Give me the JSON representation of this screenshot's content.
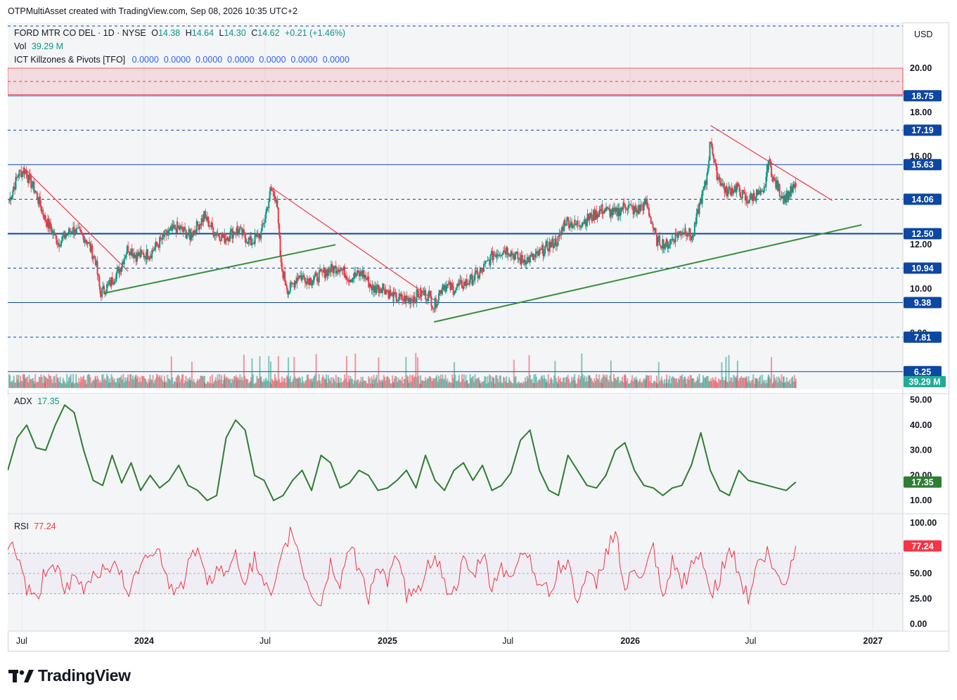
{
  "attribution": "OTPMultiAsset created with TradingView.com, Sep 08, 2026 10:35 UTC+2",
  "brand": "TradingView",
  "currency": "USD",
  "symbol_line": {
    "name": "FORD MTR CO DEL · 1D · NYSE",
    "o_label": "O",
    "o": "14.38",
    "h_label": "H",
    "h": "14.64",
    "l_label": "L",
    "l": "14.30",
    "c_label": "C",
    "c": "14.62",
    "change": "+0.21 (+1.46%)"
  },
  "volume_line": {
    "label": "Vol",
    "value": "39.29 M"
  },
  "indicator_line": {
    "label": "ICT Killzones & Pivots [TFO]",
    "values": "0.0000  0.0000  0.0000  0.0000  0.0000  0.0000  0.0000"
  },
  "adx_legend": {
    "label": "ADX",
    "value": "17.35"
  },
  "rsi_legend": {
    "label": "RSI",
    "value": "77.24"
  },
  "colors": {
    "up": "#089981",
    "down": "#f23645",
    "level_line": "#0d47a1",
    "trend_up": "#388e3c",
    "trend_down": "#f23645",
    "adx": "#2e7d32",
    "rsi": "#f23645"
  },
  "chart_data": [
    {
      "type": "candlestick",
      "series": [
        {
          "name": "FORD MTR CO DEL",
          "values": [
            [
              "2023-06-12",
              14.0
            ],
            [
              "2023-06-26",
              15.2
            ],
            [
              "2023-07-05",
              15.4
            ],
            [
              "2023-07-20",
              14.5
            ],
            [
              "2023-08-05",
              13.2
            ],
            [
              "2023-08-25",
              12.1
            ],
            [
              "2023-09-15",
              12.7
            ],
            [
              "2023-10-05",
              12.3
            ],
            [
              "2023-10-20",
              11.3
            ],
            [
              "2023-10-27",
              9.8
            ],
            [
              "2023-11-10",
              10.2
            ],
            [
              "2023-11-25",
              10.9
            ],
            [
              "2023-12-08",
              11.9
            ],
            [
              "2023-12-20",
              11.5
            ],
            [
              "2024-01-10",
              11.6
            ],
            [
              "2024-02-01",
              12.4
            ],
            [
              "2024-02-20",
              12.8
            ],
            [
              "2024-03-10",
              12.4
            ],
            [
              "2024-04-01",
              13.3
            ],
            [
              "2024-04-15",
              12.6
            ],
            [
              "2024-05-01",
              12.3
            ],
            [
              "2024-05-20",
              12.7
            ],
            [
              "2024-06-10",
              12.1
            ],
            [
              "2024-06-25",
              12.5
            ],
            [
              "2024-07-10",
              14.5
            ],
            [
              "2024-07-18",
              14.1
            ],
            [
              "2024-07-25",
              11.0
            ],
            [
              "2024-08-05",
              9.9
            ],
            [
              "2024-08-20",
              10.6
            ],
            [
              "2024-09-10",
              10.4
            ],
            [
              "2024-10-01",
              10.8
            ],
            [
              "2024-10-20",
              11.0
            ],
            [
              "2024-11-05",
              10.5
            ],
            [
              "2024-11-25",
              10.7
            ],
            [
              "2024-12-10",
              10.0
            ],
            [
              "2024-12-25",
              10.1
            ],
            [
              "2025-01-10",
              9.6
            ],
            [
              "2025-02-01",
              9.5
            ],
            [
              "2025-02-20",
              9.8
            ],
            [
              "2025-03-05",
              9.7
            ],
            [
              "2025-03-12",
              9.2
            ],
            [
              "2025-03-25",
              10.2
            ],
            [
              "2025-04-10",
              10.0
            ],
            [
              "2025-05-01",
              10.3
            ],
            [
              "2025-05-20",
              10.7
            ],
            [
              "2025-06-10",
              11.6
            ],
            [
              "2025-06-30",
              11.8
            ],
            [
              "2025-07-20",
              11.3
            ],
            [
              "2025-08-10",
              11.4
            ],
            [
              "2025-08-28",
              11.9
            ],
            [
              "2025-09-15",
              12.2
            ],
            [
              "2025-09-25",
              13.1
            ],
            [
              "2025-10-10",
              12.9
            ],
            [
              "2025-11-01",
              13.2
            ],
            [
              "2025-11-20",
              13.6
            ],
            [
              "2025-12-10",
              13.4
            ],
            [
              "2025-12-25",
              13.8
            ],
            [
              "2026-01-10",
              13.5
            ],
            [
              "2026-01-25",
              13.9
            ],
            [
              "2026-02-10",
              12.2
            ],
            [
              "2026-02-25",
              12.0
            ],
            [
              "2026-03-10",
              12.4
            ],
            [
              "2026-03-25",
              12.7
            ],
            [
              "2026-04-05",
              12.3
            ],
            [
              "2026-04-15",
              13.8
            ],
            [
              "2026-04-25",
              14.8
            ],
            [
              "2026-05-02",
              16.8
            ],
            [
              "2026-05-10",
              15.3
            ],
            [
              "2026-05-25",
              14.4
            ],
            [
              "2026-06-10",
              14.6
            ],
            [
              "2026-06-25",
              14.0
            ],
            [
              "2026-07-10",
              14.3
            ],
            [
              "2026-07-20",
              14.2
            ],
            [
              "2026-07-28",
              15.8
            ],
            [
              "2026-08-05",
              14.9
            ],
            [
              "2026-08-20",
              14.1
            ],
            [
              "2026-09-07",
              14.62
            ]
          ]
        }
      ],
      "y_ticks": [
        "20.00",
        "18.00",
        "16.00",
        "14.00",
        "12.00",
        "10.00",
        "8.00"
      ],
      "price_labels": [
        "18.75",
        "17.19",
        "15.63",
        "14.06",
        "12.50",
        "10.94",
        "9.38",
        "7.81",
        "6.25"
      ],
      "last_volume_label": "39.29 M",
      "x_ticks": [
        "Jul",
        "2024",
        "Jul",
        "2025",
        "Jul",
        "2026",
        "Jul",
        "2027"
      ],
      "horizontal_levels": [
        {
          "value": 18.75,
          "style": "solid"
        },
        {
          "value": 17.19,
          "style": "dashed"
        },
        {
          "value": 15.63,
          "style": "solid"
        },
        {
          "value": 14.06,
          "style": "dashed"
        },
        {
          "value": 12.5,
          "style": "solid-bold"
        },
        {
          "value": 10.94,
          "style": "dashed"
        },
        {
          "value": 9.38,
          "style": "solid"
        },
        {
          "value": 7.81,
          "style": "dashed"
        },
        {
          "value": 6.25,
          "style": "solid"
        }
      ],
      "red_zone": {
        "from": 18.8,
        "to": 20.0
      },
      "trendlines_down": [
        [
          [
            "2023-07-05",
            15.45
          ],
          [
            "2023-12-08",
            10.8
          ]
        ],
        [
          [
            "2024-07-10",
            14.6
          ],
          [
            "2025-03-12",
            9.5
          ]
        ],
        [
          [
            "2026-05-02",
            17.4
          ],
          [
            "2026-11-01",
            14.0
          ]
        ]
      ],
      "trendlines_up": [
        [
          [
            "2023-11-01",
            9.8
          ],
          [
            "2024-10-15",
            12.0
          ]
        ],
        [
          [
            "2025-03-12",
            8.5
          ],
          [
            "2026-12-15",
            12.9
          ]
        ]
      ],
      "grid": true
    },
    {
      "type": "line",
      "series": [
        {
          "name": "ADX",
          "values": [
            22,
            35,
            40,
            31,
            30,
            40,
            48,
            45,
            30,
            18,
            16,
            28,
            17,
            25,
            14,
            20,
            15,
            18,
            24,
            16,
            14,
            10,
            12,
            35,
            42,
            38,
            20,
            18,
            10,
            12,
            18,
            22,
            14,
            28,
            25,
            15,
            17,
            22,
            20,
            14,
            15,
            18,
            22,
            15,
            28,
            18,
            14,
            22,
            25,
            18,
            24,
            14,
            16,
            21,
            34,
            38,
            22,
            14,
            12,
            28,
            22,
            16,
            15,
            20,
            30,
            33,
            22,
            16,
            15,
            12,
            15,
            16,
            24,
            37,
            22,
            14,
            12,
            22,
            18,
            17,
            16,
            15,
            14,
            17.35
          ]
        }
      ],
      "y_ticks": [
        "50.00",
        "40.00",
        "30.00",
        "20.00",
        "10.00"
      ],
      "ylim": [
        5,
        52
      ],
      "last_label": "17.35"
    },
    {
      "type": "line",
      "series": [
        {
          "name": "RSI",
          "values": [
            80,
            70,
            35,
            22,
            55,
            60,
            30,
            45,
            35,
            50,
            55,
            60,
            45,
            30,
            65,
            75,
            70,
            40,
            30,
            55,
            80,
            35,
            60,
            45,
            75,
            40,
            65,
            35,
            28,
            70,
            95,
            55,
            30,
            20,
            60,
            40,
            78,
            55,
            28,
            60,
            40,
            65,
            30,
            25,
            55,
            70,
            40,
            30,
            60,
            45,
            70,
            35,
            60,
            40,
            75,
            65,
            40,
            30,
            55,
            60,
            25,
            45,
            40,
            70,
            95,
            30,
            55,
            45,
            75,
            20,
            60,
            40,
            55,
            70,
            30,
            45,
            80,
            50,
            25,
            60,
            70,
            45,
            40,
            77.24
          ]
        }
      ],
      "y_ticks": [
        "100.00",
        "75.00",
        "50.00",
        "25.00",
        "0.00"
      ],
      "ylim": [
        0,
        100
      ],
      "overbought": 70,
      "oversold": 30,
      "last_label": "77.24"
    }
  ]
}
